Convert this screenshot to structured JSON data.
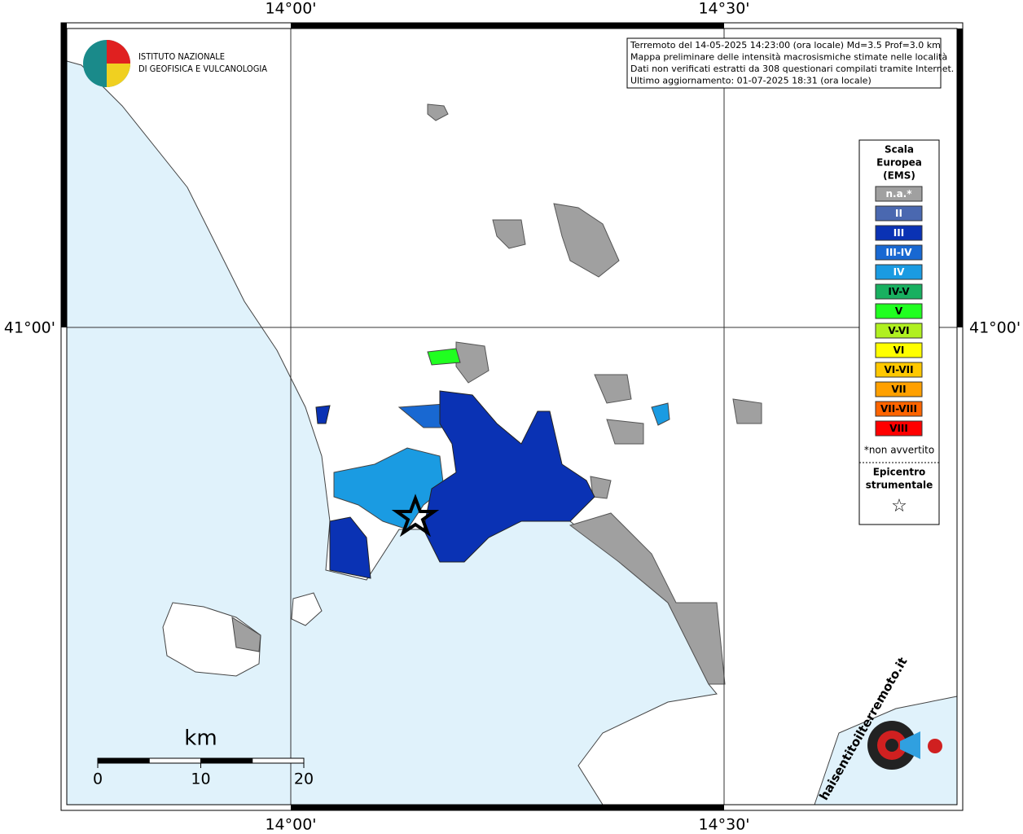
{
  "map": {
    "frame_labels": {
      "top": [
        "14°00'",
        "14°30'"
      ],
      "bottom": [
        "14°00'",
        "14°30'"
      ],
      "left": "41°00'",
      "right": "41°00'"
    },
    "logo": {
      "line1": "ISTITUTO NAZIONALE",
      "line2": "DI GEOFISICA E VULCANOLOGIA"
    },
    "info": [
      "Terremoto del 14-05-2025 14:23:00 (ora locale) Md=3.5 Prof=3.0 km",
      "Mappa preliminare delle intensità macrosismiche stimate nelle località",
      "Dati non verificati estratti da 308 questionari compilati tramite Internet.",
      "Ultimo aggiornamento: 01-07-2025 18:31 (ora locale)"
    ],
    "legend": {
      "title": [
        "Scala",
        "Europea",
        "(EMS)"
      ],
      "items": [
        {
          "label": "n.a.*",
          "color": "#a0a0a0",
          "text_color": "#ffffff"
        },
        {
          "label": "II",
          "color": "#4a68b0",
          "text_color": "#ffffff"
        },
        {
          "label": "III",
          "color": "#0a32b4",
          "text_color": "#ffffff"
        },
        {
          "label": "III-IV",
          "color": "#1868d2",
          "text_color": "#ffffff"
        },
        {
          "label": "IV",
          "color": "#1a9be2",
          "text_color": "#ffffff"
        },
        {
          "label": "IV-V",
          "color": "#18b060",
          "text_color": "#000000"
        },
        {
          "label": "V",
          "color": "#20ff20",
          "text_color": "#000000"
        },
        {
          "label": "V-VI",
          "color": "#b0f020",
          "text_color": "#000000"
        },
        {
          "label": "VI",
          "color": "#ffff00",
          "text_color": "#000000"
        },
        {
          "label": "VI-VII",
          "color": "#ffc800",
          "text_color": "#000000"
        },
        {
          "label": "VII",
          "color": "#ffa000",
          "text_color": "#000000"
        },
        {
          "label": "VII-VIII",
          "color": "#ff6400",
          "text_color": "#000000"
        },
        {
          "label": "VIII",
          "color": "#ff0000",
          "text_color": "#000000"
        }
      ],
      "note": "*non avvertito",
      "epicenter": [
        "Epicentro",
        "strumentale"
      ]
    },
    "scale_bar": {
      "unit": "km",
      "ticks": [
        0,
        10,
        20
      ]
    },
    "site_logo": "haisentitoilterremoto.it"
  }
}
